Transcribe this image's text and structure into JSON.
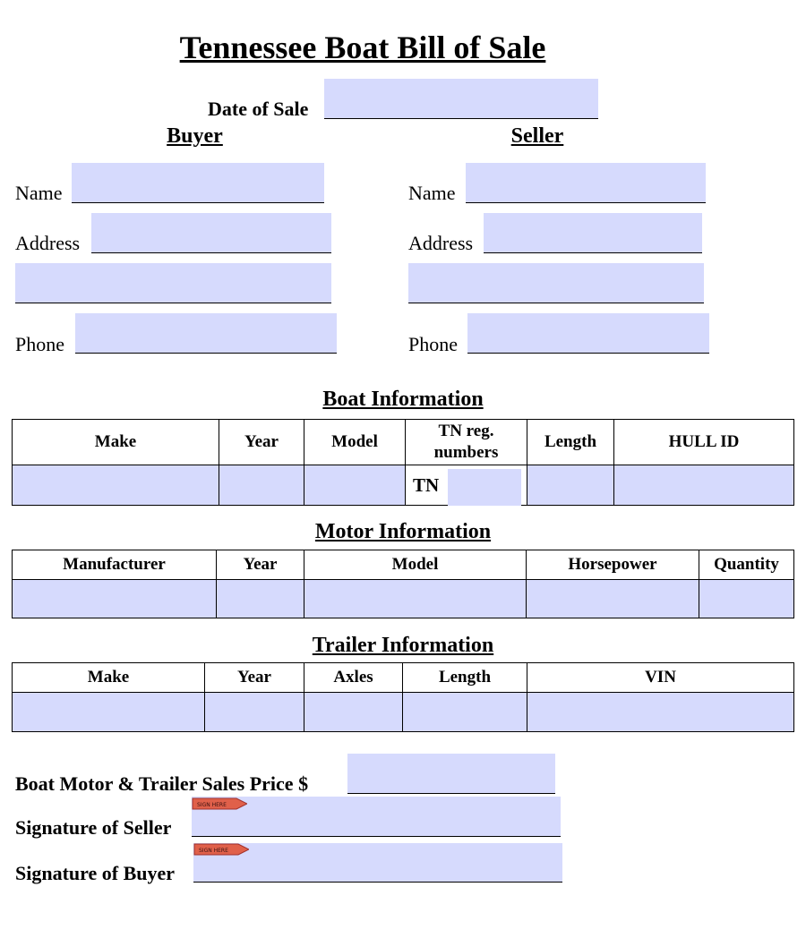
{
  "title": "Tennessee Boat Bill of Sale",
  "date_of_sale": {
    "label": "Date of Sale",
    "value": ""
  },
  "buyer": {
    "heading": "Buyer",
    "name_label": "Name",
    "address_label": "Address",
    "phone_label": "Phone"
  },
  "seller": {
    "heading": "Seller",
    "name_label": "Name",
    "address_label": "Address",
    "phone_label": "Phone"
  },
  "boat": {
    "heading": "Boat Information",
    "columns": [
      "Make",
      "Year",
      "Model",
      "TN reg. numbers",
      "Length",
      "HULL ID"
    ],
    "tn_prefix": "TN"
  },
  "motor": {
    "heading": "Motor Information",
    "columns": [
      "Manufacturer",
      "Year",
      "Model",
      "Horsepower",
      "Quantity"
    ]
  },
  "trailer": {
    "heading": "Trailer Information",
    "columns": [
      "Make",
      "Year",
      "Axles",
      "Length",
      "VIN"
    ]
  },
  "price_label": "Boat Motor & Trailer Sales Price $",
  "seller_signature_label": "Signature of Seller",
  "buyer_signature_label": "Signature of Buyer",
  "sign_here": "SIGN HERE",
  "colors": {
    "field": "#d6dafd",
    "sign_tag": "#e0604a"
  }
}
